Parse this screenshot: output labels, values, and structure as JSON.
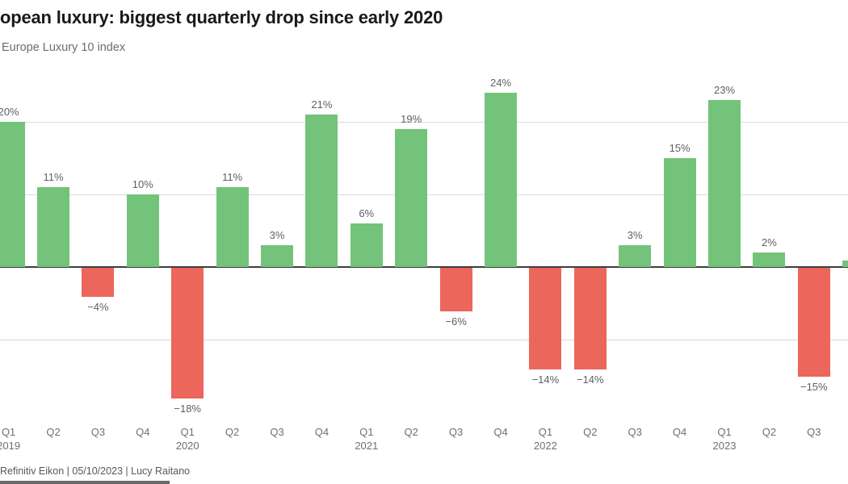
{
  "page": {
    "title": "opean luxury: biggest quarterly drop since early 2020",
    "subtitle": "Europe Luxury 10 index",
    "source_line": "Refinitiv Eikon | 05/10/2023 | Lucy Raitano"
  },
  "colors": {
    "positive_bar": "#74c37a",
    "negative_bar": "#ec665c",
    "gridline": "#d9d9d9",
    "zero_axis": "#3d3d3d",
    "value_label_text": "#5d6064",
    "tick_label_text": "#6f6f6f",
    "title_text": "#191919",
    "subtitle_text": "#6d6d6d",
    "source_text": "#55575b"
  },
  "chart_data": {
    "type": "bar",
    "title": "opean luxury: biggest quarterly drop since early 2020",
    "subtitle": "Europe Luxury 10 index",
    "unit": "percent (quarterly change)",
    "categories": [
      "Q1 2019",
      "Q2",
      "Q3",
      "Q4",
      "Q1 2020",
      "Q2",
      "Q3",
      "Q4",
      "Q1 2021",
      "Q2",
      "Q3",
      "Q4",
      "Q1 2022",
      "Q2",
      "Q3",
      "Q4",
      "Q1 2023",
      "Q2",
      "Q3"
    ],
    "values": [
      20,
      11,
      -4,
      10,
      -18,
      11,
      3,
      21,
      6,
      19,
      -6,
      24,
      -14,
      -14,
      3,
      15,
      23,
      2,
      -15
    ],
    "value_labels": [
      "20%",
      "11%",
      "−4%",
      "10%",
      "−18%",
      "11%",
      "3%",
      "21%",
      "6%",
      "19%",
      "−6%",
      "24%",
      "−14%",
      "−14%",
      "3%",
      "15%",
      "23%",
      "2%",
      "−15%"
    ],
    "gridlines_pct": [
      20,
      10,
      -10
    ],
    "ylim": [
      -20,
      26
    ],
    "xlabel": "",
    "ylabel": "",
    "legend": "none",
    "notes": "Title, subtitle and source line are clipped at the left image edge; first bar (Q1 2019, 20%) is clipped at the left edge and an unlabeled sliver of the next bar is visible at the right edge."
  }
}
